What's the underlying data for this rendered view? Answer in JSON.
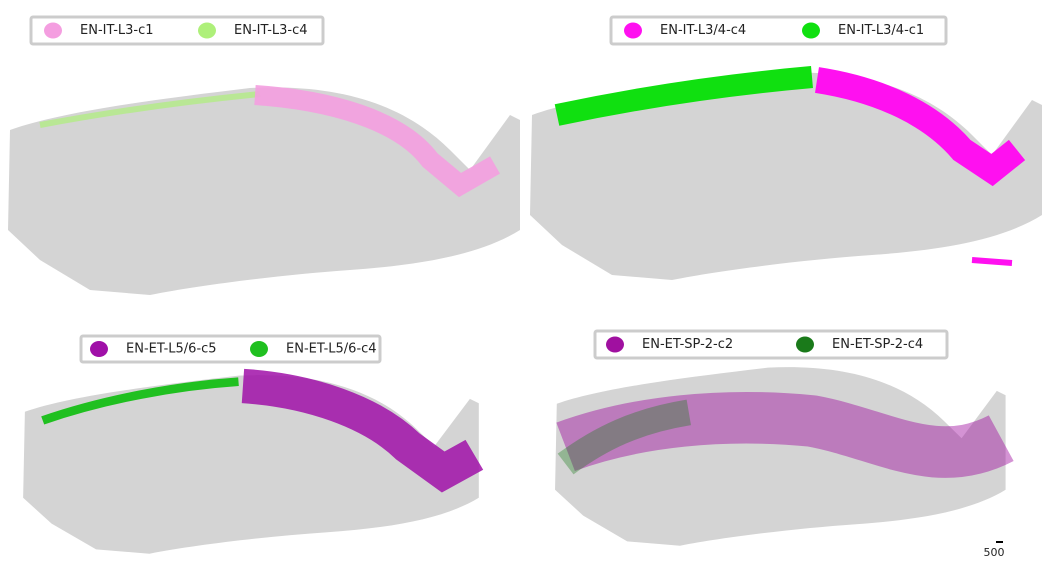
{
  "panels": [
    {
      "legend": [
        {
          "label": "EN-IT-L3-c1",
          "color": "#f49ee0"
        },
        {
          "label": "EN-IT-L3-c4",
          "color": "#aef07a"
        }
      ]
    },
    {
      "legend": [
        {
          "label": "EN-IT-L3/4-c4",
          "color": "#ff10f0"
        },
        {
          "label": "EN-IT-L3/4-c1",
          "color": "#10e010"
        }
      ]
    },
    {
      "legend": [
        {
          "label": "EN-ET-L5/6-c5",
          "color": "#a010a8"
        },
        {
          "label": "EN-ET-L5/6-c4",
          "color": "#20c020"
        }
      ]
    },
    {
      "legend": [
        {
          "label": "EN-ET-SP-2-c2",
          "color": "#a010a0"
        },
        {
          "label": "EN-ET-SP-2-c4",
          "color": "#1a7a1a"
        }
      ]
    }
  ],
  "scale_bar": {
    "label": "500"
  }
}
